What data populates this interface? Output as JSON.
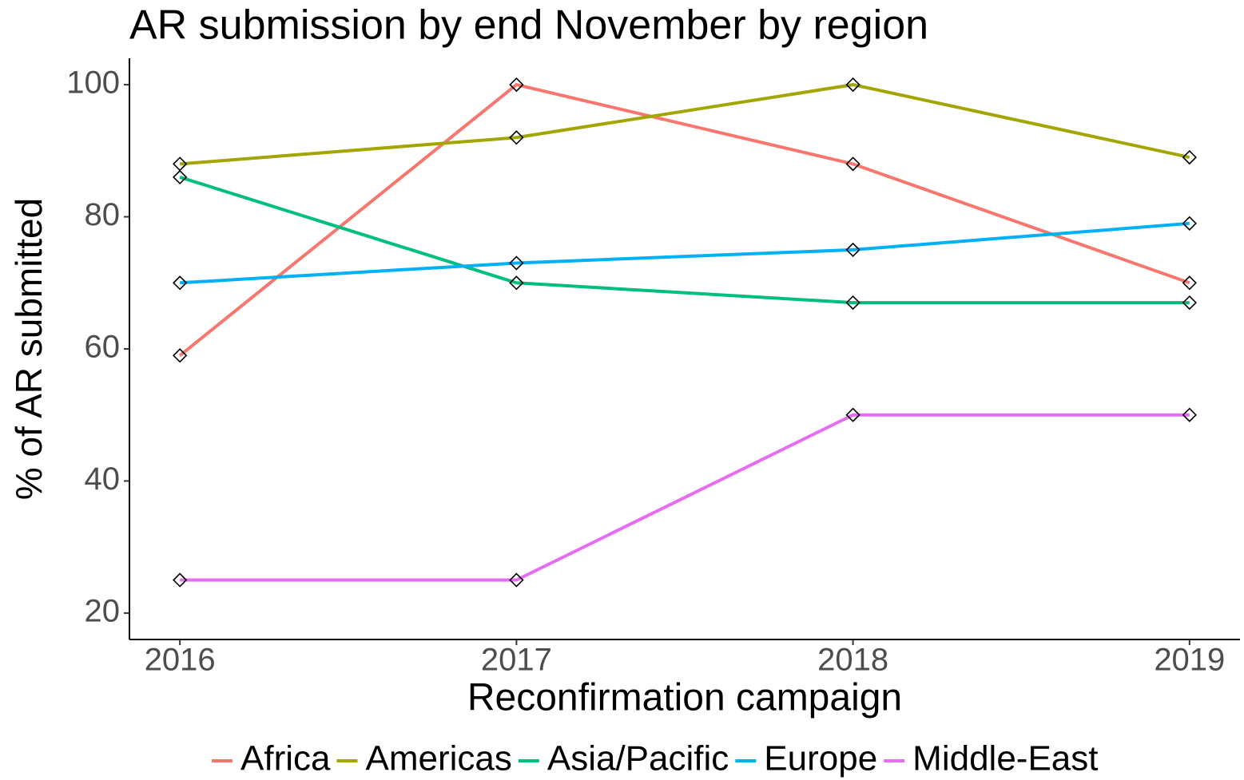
{
  "chart_data": {
    "type": "line",
    "title": "AR submission by end November by region",
    "xlabel": "Reconfirmation campaign",
    "ylabel": "% of AR submitted",
    "x": [
      2016,
      2017,
      2018,
      2019
    ],
    "series": [
      {
        "name": "Africa",
        "color": "#F8766D",
        "values": [
          59,
          100,
          88,
          70
        ]
      },
      {
        "name": "Americas",
        "color": "#A3A500",
        "values": [
          88,
          92,
          100,
          89
        ]
      },
      {
        "name": "Asia/Pacific",
        "color": "#00BF7D",
        "values": [
          86,
          70,
          67,
          67
        ]
      },
      {
        "name": "Europe",
        "color": "#00B0F6",
        "values": [
          70,
          73,
          75,
          79
        ]
      },
      {
        "name": "Middle-East",
        "color": "#E76BF3",
        "values": [
          25,
          25,
          50,
          50
        ]
      }
    ],
    "xlim": [
      2015.85,
      2019.15
    ],
    "xticks": [
      2016,
      2017,
      2018,
      2019
    ],
    "ylim": [
      16,
      104
    ],
    "yticks": [
      20,
      40,
      60,
      80,
      100
    ],
    "grid": false,
    "legend": "bottom",
    "marker": "diamond"
  }
}
